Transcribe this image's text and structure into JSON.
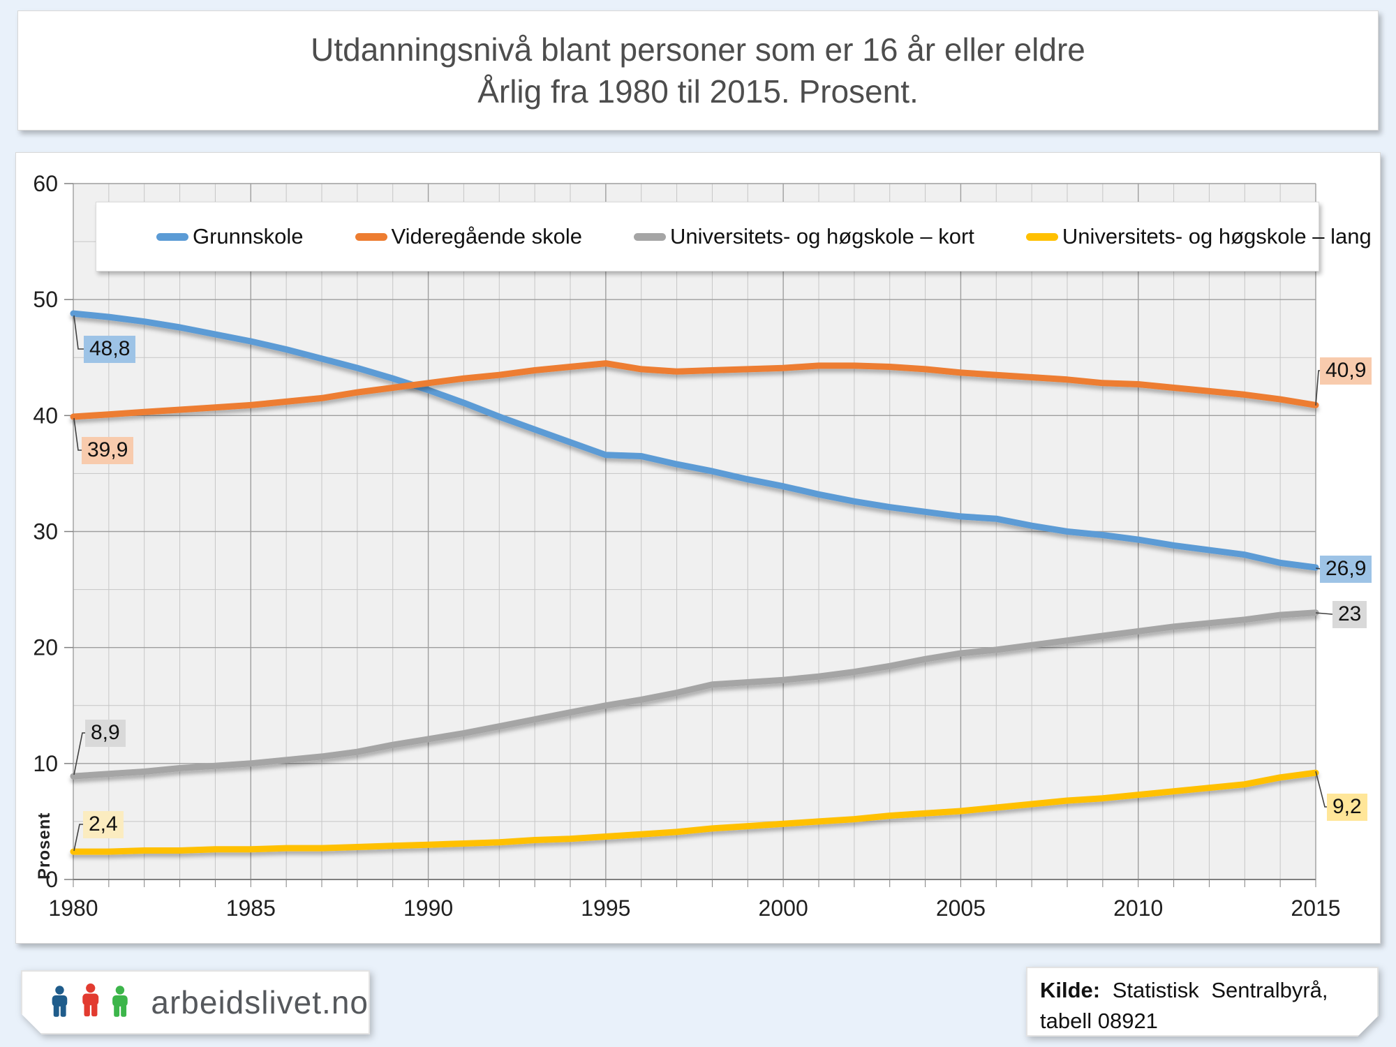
{
  "title": {
    "line1": "Utdanningsnivå blant personer som er 16 år eller eldre",
    "line2": "Årlig fra 1980 til 2015. Prosent."
  },
  "footer": {
    "logo_text": "arbeidslivet.no",
    "logo_colors": [
      "#1F5C8B",
      "#E23B30",
      "#3CB54A"
    ],
    "source_bold": "Kilde:",
    "source_rest": " Statistisk Sentralbyrå,",
    "source_line2": "tabell 08921"
  },
  "callouts": [
    {
      "id": "grunnskole-start",
      "text": "48,8",
      "bg": "#9DC3E6"
    },
    {
      "id": "videregaende-start",
      "text": "39,9",
      "bg": "#F8CBAD"
    },
    {
      "id": "kort-start",
      "text": "8,9",
      "bg": "#D9D9D9"
    },
    {
      "id": "lang-start",
      "text": "2,4",
      "bg": "#FBECC0"
    },
    {
      "id": "videregaende-end",
      "text": "40,9",
      "bg": "#F8CBAD"
    },
    {
      "id": "grunnskole-end",
      "text": "26,9",
      "bg": "#9DC3E6"
    },
    {
      "id": "kort-end",
      "text": "23",
      "bg": "#D9D9D9"
    },
    {
      "id": "lang-end",
      "text": "9,2",
      "bg": "#FFE699"
    }
  ],
  "chart_data": {
    "type": "line",
    "title": "Utdanningsnivå blant personer som er 16 år eller eldre. Årlig fra 1980 til 2015. Prosent.",
    "xlabel": "",
    "ylabel": "Prosent",
    "ylim": [
      0,
      60
    ],
    "y_ticks": [
      0,
      10,
      20,
      30,
      40,
      50,
      60
    ],
    "x_tick_labels": [
      "1980",
      "1985",
      "1990",
      "1995",
      "2000",
      "2005",
      "2010",
      "2015"
    ],
    "grid": {
      "x_minor_step_years": 1,
      "x_major_step_years": 5,
      "y_minor_step": 5,
      "y_major_step": 10,
      "grid_on": true
    },
    "legend_position": "top-inside",
    "x": [
      1980,
      1981,
      1982,
      1983,
      1984,
      1985,
      1986,
      1987,
      1988,
      1989,
      1990,
      1991,
      1992,
      1993,
      1994,
      1995,
      1996,
      1997,
      1998,
      1999,
      2000,
      2001,
      2002,
      2003,
      2004,
      2005,
      2006,
      2007,
      2008,
      2009,
      2010,
      2011,
      2012,
      2013,
      2014,
      2015
    ],
    "series": [
      {
        "name": "Grunnskole",
        "color": "#5B9BD5",
        "values": [
          48.8,
          48.5,
          48.1,
          47.6,
          47.0,
          46.4,
          45.7,
          44.9,
          44.1,
          43.2,
          42.2,
          41.1,
          39.9,
          38.8,
          37.7,
          36.6,
          36.5,
          35.8,
          35.2,
          34.5,
          33.9,
          33.2,
          32.6,
          32.1,
          31.7,
          31.3,
          31.1,
          30.5,
          30.0,
          29.7,
          29.3,
          28.8,
          28.4,
          28.0,
          27.3,
          26.9
        ]
      },
      {
        "name": "Videregående skole",
        "color": "#ED7D31",
        "values": [
          39.9,
          40.1,
          40.3,
          40.5,
          40.7,
          40.9,
          41.2,
          41.5,
          42.0,
          42.4,
          42.8,
          43.2,
          43.5,
          43.9,
          44.2,
          44.5,
          44.0,
          43.8,
          43.9,
          44.0,
          44.1,
          44.3,
          44.3,
          44.2,
          44.0,
          43.7,
          43.5,
          43.3,
          43.1,
          42.8,
          42.7,
          42.4,
          42.1,
          41.8,
          41.4,
          40.9
        ]
      },
      {
        "name": "Universitets- og høgskole – kort",
        "color": "#A5A5A5",
        "values": [
          8.9,
          9.1,
          9.3,
          9.6,
          9.8,
          10.0,
          10.3,
          10.6,
          11.0,
          11.6,
          12.1,
          12.6,
          13.2,
          13.8,
          14.4,
          15.0,
          15.5,
          16.1,
          16.8,
          17.0,
          17.2,
          17.5,
          17.9,
          18.4,
          19.0,
          19.5,
          19.8,
          20.2,
          20.6,
          21.0,
          21.4,
          21.8,
          22.1,
          22.4,
          22.8,
          23.0
        ]
      },
      {
        "name": "Universitets- og høgskole – lang",
        "color": "#FFC000",
        "values": [
          2.4,
          2.4,
          2.5,
          2.5,
          2.6,
          2.6,
          2.7,
          2.7,
          2.8,
          2.9,
          3.0,
          3.1,
          3.2,
          3.4,
          3.5,
          3.7,
          3.9,
          4.1,
          4.4,
          4.6,
          4.8,
          5.0,
          5.2,
          5.5,
          5.7,
          5.9,
          6.2,
          6.5,
          6.8,
          7.0,
          7.3,
          7.6,
          7.9,
          8.2,
          8.8,
          9.2
        ]
      }
    ],
    "point_labels": [
      {
        "series": "Grunnskole",
        "year": 1980,
        "value_label": "48,8"
      },
      {
        "series": "Videregående skole",
        "year": 1980,
        "value_label": "39,9"
      },
      {
        "series": "Universitets- og høgskole – kort",
        "year": 1980,
        "value_label": "8,9"
      },
      {
        "series": "Universitets- og høgskole – lang",
        "year": 1980,
        "value_label": "2,4"
      },
      {
        "series": "Grunnskole",
        "year": 2015,
        "value_label": "26,9"
      },
      {
        "series": "Videregående skole",
        "year": 2015,
        "value_label": "40,9"
      },
      {
        "series": "Universitets- og høgskole – kort",
        "year": 2015,
        "value_label": "23"
      },
      {
        "series": "Universitets- og høgskole – lang",
        "year": 2015,
        "value_label": "9,2"
      }
    ]
  }
}
